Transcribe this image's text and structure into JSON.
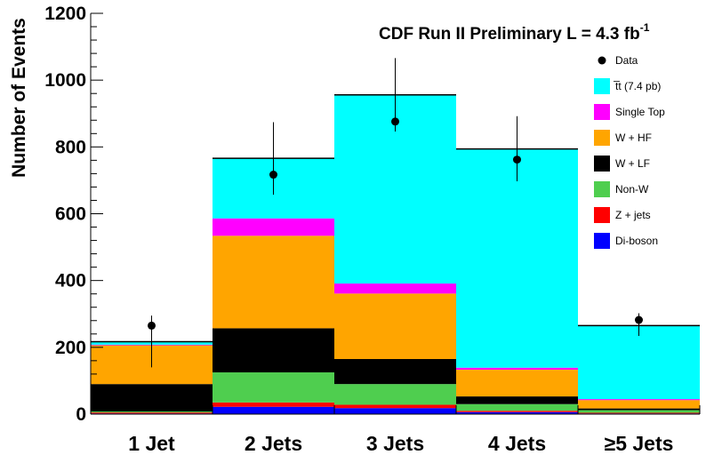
{
  "chart_data": {
    "type": "bar",
    "stacked": true,
    "title": "CDF Run II Preliminary L = 4.3 fb",
    "title_superscript": "-1",
    "xlabel": "",
    "ylabel": "Number of Events",
    "ylim": [
      0,
      1200
    ],
    "yticks": [
      0,
      200,
      400,
      600,
      800,
      1000,
      1200
    ],
    "categories": [
      "1 Jet",
      "2 Jets",
      "3 Jets",
      "4 Jets",
      "≥5 Jets"
    ],
    "series": [
      {
        "name": "Di-boson",
        "color": "#0000ff",
        "values": [
          2,
          22,
          18,
          6,
          2
        ]
      },
      {
        "name": "Z + jets",
        "color": "#ff0000",
        "values": [
          3,
          13,
          10,
          4,
          2
        ]
      },
      {
        "name": "Non-W",
        "color": "#4fce4f",
        "values": [
          3,
          90,
          62,
          20,
          8
        ]
      },
      {
        "name": "W + LF",
        "color": "#000000",
        "values": [
          82,
          132,
          75,
          23,
          5
        ]
      },
      {
        "name": "W + HF",
        "color": "#ffa500",
        "values": [
          116,
          277,
          196,
          80,
          25
        ]
      },
      {
        "name": "Single Top",
        "color": "#ff00ff",
        "values": [
          2,
          52,
          30,
          6,
          3
        ]
      },
      {
        "name": "t̅t (7.4 pb)",
        "color": "#00ffff",
        "values": [
          9,
          180,
          565,
          655,
          220
        ]
      }
    ],
    "data": {
      "name": "Data",
      "values": [
        265,
        717,
        876,
        762,
        282
      ],
      "err_low": [
        125,
        60,
        30,
        65,
        48
      ],
      "err_high": [
        30,
        157,
        190,
        130,
        20
      ]
    },
    "legend_position": "top-right"
  }
}
